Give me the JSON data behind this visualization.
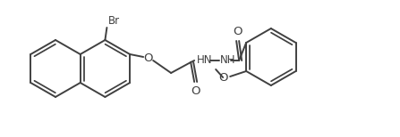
{
  "bg_color": "#ffffff",
  "line_color": "#404040",
  "line_width": 1.4,
  "text_color": "#404040",
  "font_size": 8.5,
  "labels": {
    "Br": "Br",
    "O1": "O",
    "O2": "O",
    "O3": "O",
    "HN": "HN",
    "NH": "NH",
    "OMe_O": "O",
    "OMe_CH3": ""
  }
}
